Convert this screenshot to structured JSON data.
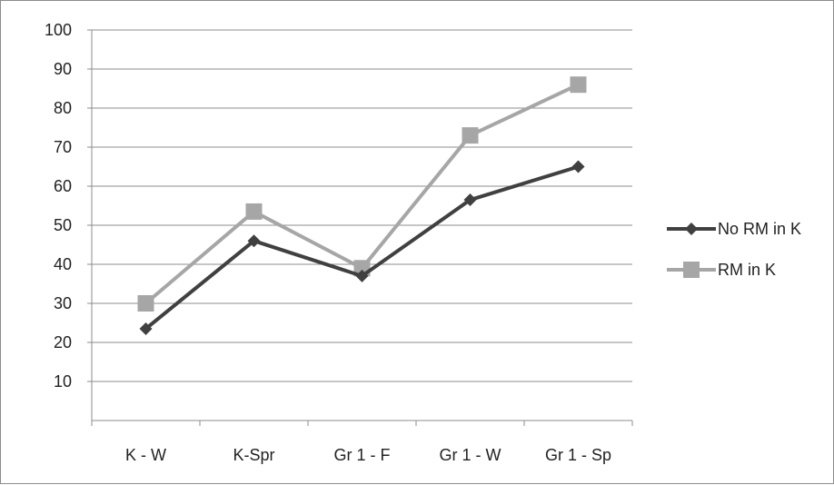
{
  "chart_data": {
    "type": "line",
    "title": "",
    "xlabel": "",
    "ylabel": "",
    "categories": [
      "K - W",
      "K-Spr",
      "Gr 1 - F",
      "Gr 1 - W",
      "Gr 1 - Sp"
    ],
    "ylim": [
      0,
      100
    ],
    "yticks": [
      "10",
      "20",
      "30",
      "40",
      "50",
      "60",
      "70",
      "80",
      "90",
      "100"
    ],
    "grid": true,
    "legend_position": "right",
    "series": [
      {
        "name": "No RM in K",
        "values": [
          23.5,
          46,
          37,
          56.5,
          65
        ],
        "color": "#404040",
        "marker": "diamond"
      },
      {
        "name": "RM in K",
        "values": [
          30,
          53.5,
          39,
          73,
          86
        ],
        "color": "#a6a6a6",
        "marker": "square"
      }
    ]
  }
}
